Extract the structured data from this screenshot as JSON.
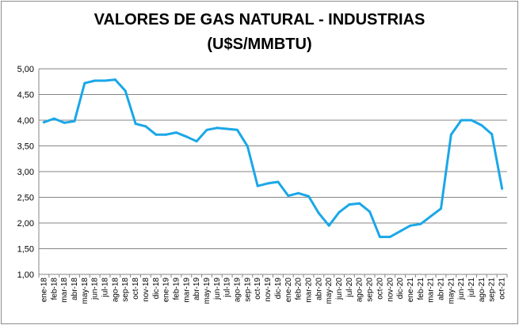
{
  "chart_data": {
    "type": "line",
    "title_line1": "VALORES DE GAS NATURAL - INDUSTRIAS",
    "title_line2": "(U$S/MMBTU)",
    "xlabel": "",
    "ylabel": "",
    "ylim": [
      1.0,
      5.0
    ],
    "ytick_step": 0.5,
    "ytick_labels": [
      "1,00",
      "1,50",
      "2,00",
      "2,50",
      "3,00",
      "3,50",
      "4,00",
      "4,50",
      "5,00"
    ],
    "grid": "horizontal",
    "line_color": "#1aa7e8",
    "categories": [
      "ene-18",
      "feb-18",
      "mar-18",
      "abr-18",
      "may-18",
      "jun-18",
      "jul-18",
      "ago-18",
      "sep-18",
      "oct-18",
      "nov-18",
      "dic-18",
      "ene-19",
      "feb-19",
      "mar-19",
      "abr-19",
      "may-19",
      "jun-19",
      "jul-19",
      "ago-19",
      "sep-19",
      "oct-19",
      "nov-19",
      "dic-19",
      "ene-20",
      "feb-20",
      "mar-20",
      "abr-20",
      "may-20",
      "jun-20",
      "jul-20",
      "ago-20",
      "sep-20",
      "oct-20",
      "nov-20",
      "dic-20",
      "ene-21",
      "feb-21",
      "mar-21",
      "abr-21",
      "may-21",
      "jun-21",
      "jul-21",
      "ago-21",
      "sep-21",
      "oct-21"
    ],
    "values": [
      3.96,
      4.03,
      3.95,
      3.98,
      4.72,
      4.77,
      4.77,
      4.79,
      4.57,
      3.93,
      3.88,
      3.72,
      3.72,
      3.76,
      3.68,
      3.59,
      3.81,
      3.85,
      3.83,
      3.81,
      3.49,
      2.72,
      2.77,
      2.8,
      2.53,
      2.58,
      2.52,
      2.19,
      1.95,
      2.21,
      2.36,
      2.38,
      2.22,
      1.73,
      1.73,
      1.84,
      1.95,
      1.98,
      2.13,
      2.28,
      3.72,
      4.0,
      4.0,
      3.9,
      3.73,
      2.67
    ]
  }
}
